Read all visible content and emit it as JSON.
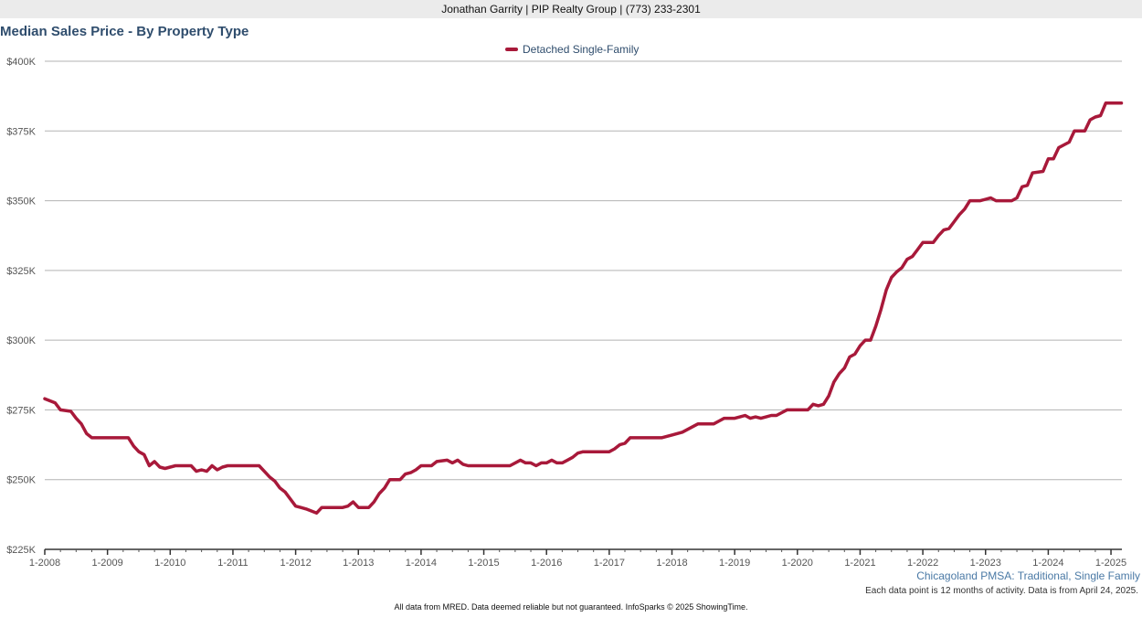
{
  "header": {
    "contact": "Jonathan Garrity | PIP Realty Group | (773) 233-2301"
  },
  "subtitle": "Chicagoland PMSA: Traditional, Single Family",
  "note": "Each data point is 12 months of activity. Data is from April 24, 2025.",
  "footer": "All data from MRED. Data deemed reliable but not guaranteed. InfoSparks © 2025 ShowingTime.",
  "chart_data": {
    "type": "line",
    "title": "Median Sales Price - By Property Type",
    "xlabel": "",
    "ylabel": "",
    "ylim": [
      225000,
      400000
    ],
    "yticks": [
      {
        "value": 225000,
        "label": "$225K"
      },
      {
        "value": 250000,
        "label": "$250K"
      },
      {
        "value": 275000,
        "label": "$275K"
      },
      {
        "value": 300000,
        "label": "$300K"
      },
      {
        "value": 325000,
        "label": "$325K"
      },
      {
        "value": 350000,
        "label": "$350K"
      },
      {
        "value": 375000,
        "label": "$375K"
      },
      {
        "value": 400000,
        "label": "$400K"
      }
    ],
    "xticks": [
      "1-2008",
      "1-2009",
      "1-2010",
      "1-2011",
      "1-2012",
      "1-2013",
      "1-2014",
      "1-2015",
      "1-2016",
      "1-2017",
      "1-2018",
      "1-2019",
      "1-2020",
      "1-2021",
      "1-2022",
      "1-2023",
      "1-2024",
      "1-2025"
    ],
    "x_range": [
      "2008-01",
      "2025-03"
    ],
    "grid": true,
    "legend_position": "top-center",
    "series": [
      {
        "name": "Detached Single-Family",
        "color": "#a8193a",
        "points": [
          [
            "2008-01",
            279000
          ],
          [
            "2008-03",
            277500
          ],
          [
            "2008-04",
            275000
          ],
          [
            "2008-06",
            274500
          ],
          [
            "2008-07",
            272000
          ],
          [
            "2008-08",
            270000
          ],
          [
            "2008-09",
            266500
          ],
          [
            "2008-10",
            265000
          ],
          [
            "2008-12",
            265000
          ],
          [
            "2009-03",
            265000
          ],
          [
            "2009-05",
            265000
          ],
          [
            "2009-06",
            262000
          ],
          [
            "2009-07",
            260000
          ],
          [
            "2009-08",
            259000
          ],
          [
            "2009-09",
            255000
          ],
          [
            "2009-10",
            256500
          ],
          [
            "2009-11",
            254500
          ],
          [
            "2009-12",
            254000
          ],
          [
            "2010-01",
            254500
          ],
          [
            "2010-02",
            255000
          ],
          [
            "2010-05",
            255000
          ],
          [
            "2010-06",
            253000
          ],
          [
            "2010-07",
            253500
          ],
          [
            "2010-08",
            253000
          ],
          [
            "2010-09",
            255000
          ],
          [
            "2010-10",
            253500
          ],
          [
            "2010-11",
            254500
          ],
          [
            "2010-12",
            255000
          ],
          [
            "2011-03",
            255000
          ],
          [
            "2011-06",
            255000
          ],
          [
            "2011-07",
            253000
          ],
          [
            "2011-08",
            251000
          ],
          [
            "2011-09",
            249500
          ],
          [
            "2011-10",
            247000
          ],
          [
            "2011-11",
            245500
          ],
          [
            "2011-12",
            243000
          ],
          [
            "2012-01",
            240500
          ],
          [
            "2012-02",
            240000
          ],
          [
            "2012-03",
            239500
          ],
          [
            "2012-05",
            238000
          ],
          [
            "2012-06",
            240000
          ],
          [
            "2012-08",
            240000
          ],
          [
            "2012-10",
            240000
          ],
          [
            "2012-11",
            240500
          ],
          [
            "2012-12",
            242000
          ],
          [
            "2013-01",
            240000
          ],
          [
            "2013-03",
            240000
          ],
          [
            "2013-04",
            242000
          ],
          [
            "2013-05",
            245000
          ],
          [
            "2013-06",
            247000
          ],
          [
            "2013-07",
            250000
          ],
          [
            "2013-09",
            250000
          ],
          [
            "2013-10",
            252000
          ],
          [
            "2013-11",
            252500
          ],
          [
            "2013-12",
            253500
          ],
          [
            "2014-01",
            255000
          ],
          [
            "2014-03",
            255000
          ],
          [
            "2014-04",
            256500
          ],
          [
            "2014-06",
            257000
          ],
          [
            "2014-07",
            256000
          ],
          [
            "2014-08",
            257000
          ],
          [
            "2014-09",
            255500
          ],
          [
            "2014-10",
            255000
          ],
          [
            "2015-01",
            255000
          ],
          [
            "2015-06",
            255000
          ],
          [
            "2015-08",
            257000
          ],
          [
            "2015-09",
            256000
          ],
          [
            "2015-10",
            256000
          ],
          [
            "2015-11",
            255000
          ],
          [
            "2015-12",
            256000
          ],
          [
            "2016-01",
            256000
          ],
          [
            "2016-02",
            257000
          ],
          [
            "2016-03",
            256000
          ],
          [
            "2016-04",
            256000
          ],
          [
            "2016-05",
            257000
          ],
          [
            "2016-06",
            258000
          ],
          [
            "2016-07",
            259500
          ],
          [
            "2016-08",
            260000
          ],
          [
            "2017-01",
            260000
          ],
          [
            "2017-02",
            261000
          ],
          [
            "2017-03",
            262500
          ],
          [
            "2017-04",
            263000
          ],
          [
            "2017-05",
            265000
          ],
          [
            "2017-09",
            265000
          ],
          [
            "2017-11",
            265000
          ],
          [
            "2018-01",
            266000
          ],
          [
            "2018-03",
            267000
          ],
          [
            "2018-05",
            269000
          ],
          [
            "2018-06",
            270000
          ],
          [
            "2018-09",
            270000
          ],
          [
            "2018-10",
            271000
          ],
          [
            "2018-11",
            272000
          ],
          [
            "2019-01",
            272000
          ],
          [
            "2019-02",
            272500
          ],
          [
            "2019-03",
            273000
          ],
          [
            "2019-04",
            272000
          ],
          [
            "2019-05",
            272500
          ],
          [
            "2019-06",
            272000
          ],
          [
            "2019-07",
            272500
          ],
          [
            "2019-08",
            273000
          ],
          [
            "2019-09",
            273000
          ],
          [
            "2019-10",
            274000
          ],
          [
            "2019-11",
            275000
          ],
          [
            "2020-01",
            275000
          ],
          [
            "2020-03",
            275000
          ],
          [
            "2020-04",
            277000
          ],
          [
            "2020-05",
            276500
          ],
          [
            "2020-06",
            277000
          ],
          [
            "2020-07",
            280000
          ],
          [
            "2020-08",
            285000
          ],
          [
            "2020-09",
            288000
          ],
          [
            "2020-10",
            290000
          ],
          [
            "2020-11",
            294000
          ],
          [
            "2020-12",
            295000
          ],
          [
            "2021-01",
            298000
          ],
          [
            "2021-02",
            300000
          ],
          [
            "2021-03",
            300000
          ],
          [
            "2021-04",
            305000
          ],
          [
            "2021-05",
            311000
          ],
          [
            "2021-06",
            318000
          ],
          [
            "2021-07",
            322500
          ],
          [
            "2021-08",
            324500
          ],
          [
            "2021-09",
            326000
          ],
          [
            "2021-10",
            329000
          ],
          [
            "2021-11",
            330000
          ],
          [
            "2021-12",
            332500
          ],
          [
            "2022-01",
            335000
          ],
          [
            "2022-03",
            335000
          ],
          [
            "2022-04",
            337500
          ],
          [
            "2022-05",
            339500
          ],
          [
            "2022-06",
            340000
          ],
          [
            "2022-07",
            342500
          ],
          [
            "2022-08",
            345000
          ],
          [
            "2022-09",
            347000
          ],
          [
            "2022-10",
            350000
          ],
          [
            "2022-12",
            350000
          ],
          [
            "2023-01",
            350500
          ],
          [
            "2023-02",
            351000
          ],
          [
            "2023-03",
            350000
          ],
          [
            "2023-06",
            350000
          ],
          [
            "2023-07",
            351000
          ],
          [
            "2023-08",
            355000
          ],
          [
            "2023-09",
            355500
          ],
          [
            "2023-10",
            360000
          ],
          [
            "2023-12",
            360500
          ],
          [
            "2024-01",
            365000
          ],
          [
            "2024-02",
            365000
          ],
          [
            "2024-03",
            369000
          ],
          [
            "2024-04",
            370000
          ],
          [
            "2024-05",
            371000
          ],
          [
            "2024-06",
            375000
          ],
          [
            "2024-08",
            375000
          ],
          [
            "2024-09",
            379000
          ],
          [
            "2024-10",
            380000
          ],
          [
            "2024-11",
            380500
          ],
          [
            "2024-12",
            385000
          ],
          [
            "2025-03",
            385000
          ]
        ]
      }
    ]
  }
}
